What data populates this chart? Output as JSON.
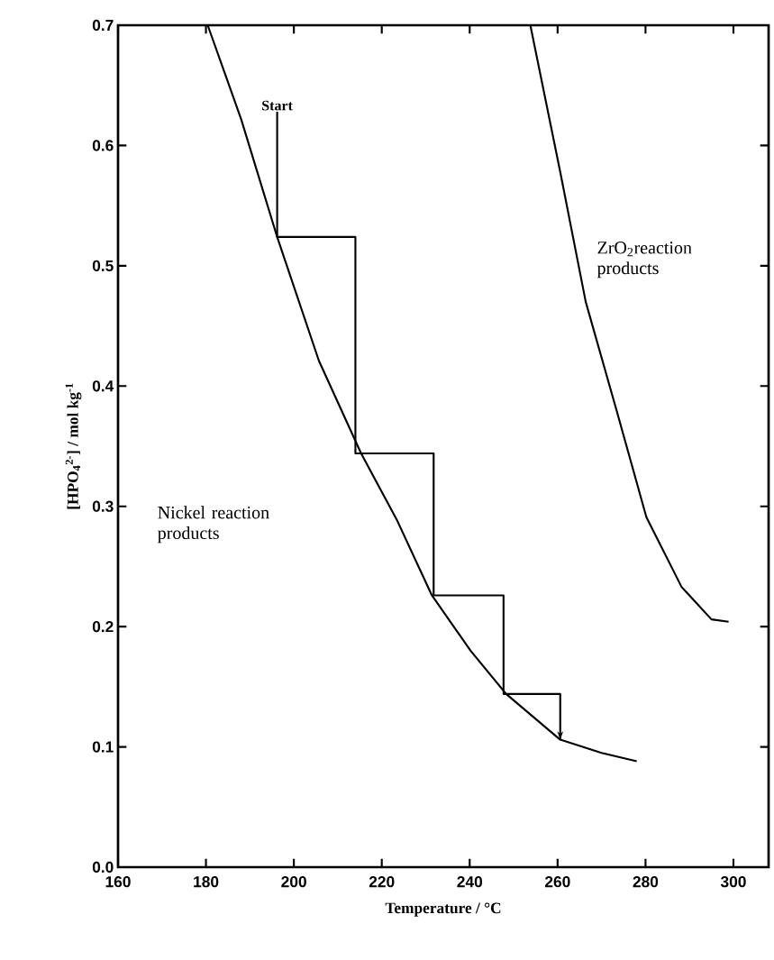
{
  "chart_data": {
    "type": "line",
    "xlabel": "Temperature / °C",
    "ylabel": "[HPO$_{4}$$^{2-}$] / mol kg$^{-1}$",
    "xlim": [
      160,
      308
    ],
    "ylim": [
      0,
      0.7
    ],
    "xticks": [
      160,
      180,
      200,
      220,
      240,
      260,
      280,
      300
    ],
    "yticks": [
      {
        "value": 0,
        "label": "0.0"
      },
      0.1,
      0.2,
      0.3,
      0.4,
      0.5,
      0.6,
      0.7
    ],
    "series": [
      {
        "color": "#000000",
        "x": [
          180.4,
          188,
          196.2,
          205.7,
          215.3,
          223.4,
          231.4,
          240.2,
          248.3,
          260.6,
          270,
          278
        ],
        "values": [
          0.7,
          0.622,
          0.524,
          0.421,
          0.344,
          0.289,
          0.226,
          0.18,
          0.144,
          0.106,
          0.095,
          0.088
        ]
      },
      {
        "color": "#000000",
        "x": [
          253.8,
          260.6,
          266.4,
          273.4,
          280.2,
          288.2,
          295,
          298.9
        ],
        "values": [
          0.7,
          0.578,
          0.47,
          0.38,
          0.291,
          0.233,
          0.206,
          0.204
        ]
      },
      {
        "color": "#000000",
        "x": [
          196.2,
          196.2,
          214,
          214,
          231.8,
          231.8,
          247.7,
          247.7,
          260.6,
          260.6
        ],
        "values": [
          0.628,
          0.524,
          0.524,
          0.344,
          0.344,
          0.226,
          0.226,
          0.144,
          0.144,
          0.106
        ]
      }
    ],
    "annotations": [
      {
        "text": "Start",
        "x": 196.2,
        "y": 0.628
      },
      "ZrO$_{2}$reaction products",
      "Nickel reaction products"
    ],
    "marker": "none",
    "line_style": "solid",
    "grid": false
  }
}
